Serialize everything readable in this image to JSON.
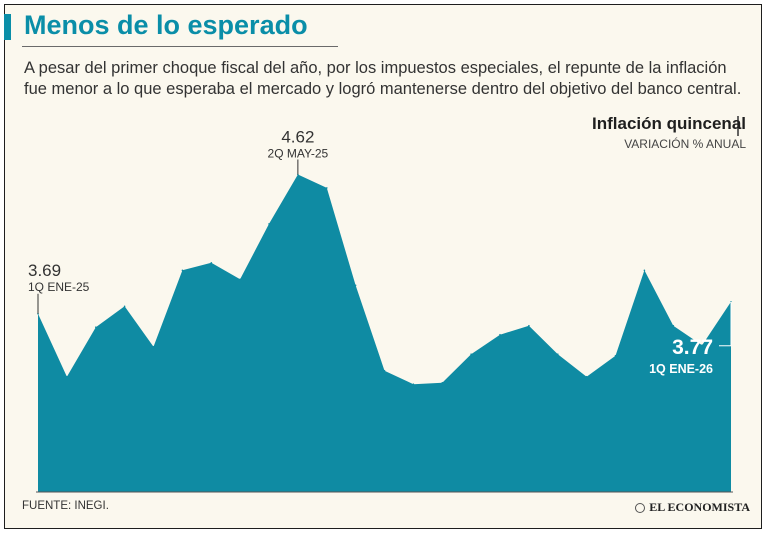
{
  "header": {
    "title": "Menos de lo esperado",
    "subtitle": "A pesar del primer choque fiscal del año, por los impuestos especiales, el repunte de la inflación fue menor a lo que esperaba el mercado y logró mantenerse dentro del objetivo del banco central."
  },
  "legend": {
    "title": "Inflación quincenal",
    "subtitle": "VARIACIÓN % ANUAL"
  },
  "footer": {
    "source": "FUENTE: INEGI.",
    "brand": "EL ECONOMISTA"
  },
  "colors": {
    "accent": "#0a8ea8",
    "area": "#0f8ba3",
    "background": "#fbf8ee",
    "text": "#333333"
  },
  "chart_data": {
    "type": "area",
    "title": "Inflación quincenal",
    "subtitle": "VARIACIÓN % ANUAL",
    "xlabel": "",
    "ylabel": "",
    "grid": false,
    "ylim": [
      2.5,
      4.85
    ],
    "series": [
      {
        "name": "Inflación quincenal",
        "values": [
          3.69,
          3.27,
          3.6,
          3.74,
          3.47,
          3.98,
          4.03,
          3.92,
          4.29,
          4.62,
          4.53,
          3.88,
          3.31,
          3.22,
          3.23,
          3.42,
          3.55,
          3.61,
          3.42,
          3.27,
          3.41,
          3.98,
          3.61,
          3.48,
          3.77
        ]
      }
    ],
    "annotations": [
      {
        "index": 0,
        "value": "3.69",
        "label": "1Q ENE-25",
        "style": "normal"
      },
      {
        "index": 9,
        "value": "4.62",
        "label": "2Q MAY-25",
        "style": "normal"
      },
      {
        "index": 24,
        "value": "3.77",
        "label": "1Q ENE-26",
        "style": "highlight"
      }
    ]
  }
}
